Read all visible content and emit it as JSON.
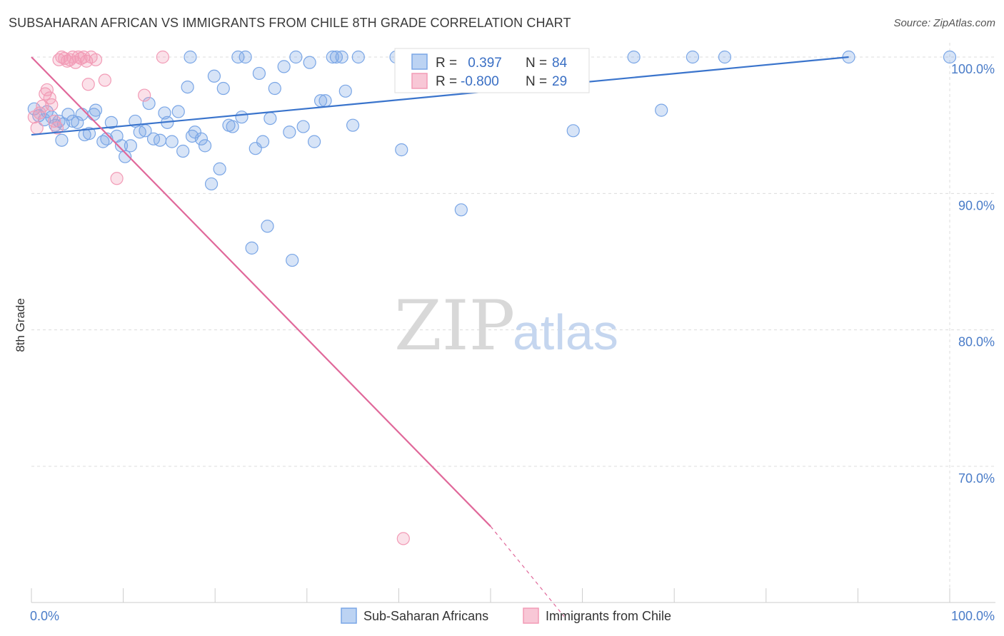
{
  "header": {
    "title": "SUBSAHARAN AFRICAN VS IMMIGRANTS FROM CHILE 8TH GRADE CORRELATION CHART",
    "source": "Source: ZipAtlas.com"
  },
  "watermark": {
    "zip": "ZIP",
    "atlas": "atlas"
  },
  "legend": {
    "rows": [
      {
        "r_label": "R =",
        "r_value": " 0.397",
        "n_label": "N =",
        "n_value": "84",
        "color": "#7aa6e6"
      },
      {
        "r_label": "R =",
        "r_value": "-0.800",
        "n_label": "N =",
        "n_value": "29",
        "color": "#f29bb6"
      }
    ]
  },
  "bottom_legend": [
    {
      "label": "Sub-Saharan Africans",
      "color": "#7aa6e6"
    },
    {
      "label": "Immigrants from Chile",
      "color": "#f29bb6"
    }
  ],
  "chart_data": {
    "type": "scatter",
    "title": "SUBSAHARAN AFRICAN VS IMMIGRANTS FROM CHILE 8TH GRADE CORRELATION CHART",
    "xlabel": "",
    "ylabel": "8th Grade",
    "xlim": [
      0,
      100
    ],
    "ylim": [
      60.0,
      101.5
    ],
    "x_tick_labels": [
      "0.0%",
      "100.0%"
    ],
    "y_ticks": [
      70,
      80,
      90,
      100
    ],
    "y_tick_labels": [
      "70.0%",
      "80.0%",
      "90.0%",
      "100.0%"
    ],
    "grid": true,
    "legend_position": "top-center",
    "series": [
      {
        "name": "Sub-Saharan Africans",
        "color": "#7aa6e6",
        "trend": {
          "x": [
            0,
            89
          ],
          "y": [
            94.3,
            100.0
          ],
          "dashed_to": null
        },
        "points": [
          [
            0.3,
            96.2
          ],
          [
            0.8,
            95.7
          ],
          [
            1.4,
            95.4
          ],
          [
            1.7,
            96.0
          ],
          [
            2.2,
            95.6
          ],
          [
            2.6,
            95.0
          ],
          [
            3.0,
            95.3
          ],
          [
            3.5,
            95.1
          ],
          [
            4.0,
            95.8
          ],
          [
            4.5,
            95.3
          ],
          [
            5.0,
            95.2
          ],
          [
            5.5,
            95.8
          ],
          [
            5.8,
            94.3
          ],
          [
            6.3,
            94.4
          ],
          [
            6.8,
            95.8
          ],
          [
            7.0,
            96.1
          ],
          [
            7.8,
            93.8
          ],
          [
            8.2,
            94.0
          ],
          [
            8.7,
            95.2
          ],
          [
            9.3,
            94.2
          ],
          [
            9.8,
            93.5
          ],
          [
            10.2,
            92.7
          ],
          [
            10.8,
            93.5
          ],
          [
            11.3,
            95.3
          ],
          [
            11.8,
            94.5
          ],
          [
            12.4,
            94.6
          ],
          [
            12.8,
            96.6
          ],
          [
            13.3,
            94.0
          ],
          [
            14.0,
            93.9
          ],
          [
            14.5,
            95.9
          ],
          [
            14.8,
            95.2
          ],
          [
            15.3,
            93.8
          ],
          [
            16.0,
            96.0
          ],
          [
            16.5,
            93.1
          ],
          [
            17.0,
            97.8
          ],
          [
            17.5,
            94.2
          ],
          [
            17.8,
            94.5
          ],
          [
            18.5,
            94.0
          ],
          [
            18.9,
            93.5
          ],
          [
            19.6,
            90.7
          ],
          [
            19.9,
            98.6
          ],
          [
            20.5,
            91.8
          ],
          [
            20.9,
            97.7
          ],
          [
            21.5,
            95.0
          ],
          [
            21.9,
            94.9
          ],
          [
            22.5,
            100.0
          ],
          [
            22.9,
            95.6
          ],
          [
            23.3,
            100.0
          ],
          [
            24.0,
            86.0
          ],
          [
            24.4,
            93.3
          ],
          [
            24.8,
            98.8
          ],
          [
            25.2,
            93.8
          ],
          [
            25.7,
            87.6
          ],
          [
            26.0,
            95.5
          ],
          [
            26.5,
            97.7
          ],
          [
            27.5,
            99.3
          ],
          [
            28.1,
            94.5
          ],
          [
            28.4,
            85.1
          ],
          [
            28.8,
            100.0
          ],
          [
            29.6,
            94.9
          ],
          [
            30.3,
            99.6
          ],
          [
            30.8,
            93.8
          ],
          [
            31.5,
            96.8
          ],
          [
            32.0,
            96.8
          ],
          [
            32.8,
            100.0
          ],
          [
            33.2,
            100.0
          ],
          [
            33.8,
            100.0
          ],
          [
            34.2,
            97.5
          ],
          [
            35.0,
            95.0
          ],
          [
            35.6,
            100.0
          ],
          [
            39.7,
            100.0
          ],
          [
            40.3,
            93.2
          ],
          [
            42.0,
            100.0
          ],
          [
            46.8,
            88.8
          ],
          [
            49.8,
            99.2
          ],
          [
            59.0,
            94.6
          ],
          [
            65.6,
            100.0
          ],
          [
            68.6,
            96.1
          ],
          [
            72.0,
            100.0
          ],
          [
            75.5,
            100.0
          ],
          [
            89.0,
            100.0
          ],
          [
            100.0,
            100.0
          ],
          [
            17.3,
            100.0
          ],
          [
            3.3,
            93.9
          ]
        ]
      },
      {
        "name": "Immigrants from Chile",
        "color": "#f29bb6",
        "trend": {
          "x": [
            0,
            50
          ],
          "y": [
            100.0,
            65.6
          ],
          "dashed_to": [
            58,
            59.0
          ]
        },
        "points": [
          [
            0.3,
            95.6
          ],
          [
            0.6,
            94.8
          ],
          [
            0.9,
            95.9
          ],
          [
            1.2,
            96.4
          ],
          [
            1.5,
            97.3
          ],
          [
            1.7,
            97.6
          ],
          [
            2.0,
            97.0
          ],
          [
            2.2,
            96.5
          ],
          [
            2.5,
            95.3
          ],
          [
            2.8,
            94.8
          ],
          [
            3.0,
            99.8
          ],
          [
            3.3,
            100.0
          ],
          [
            3.6,
            99.9
          ],
          [
            3.9,
            99.7
          ],
          [
            4.2,
            99.8
          ],
          [
            4.5,
            100.0
          ],
          [
            4.8,
            99.6
          ],
          [
            5.1,
            100.0
          ],
          [
            5.4,
            99.9
          ],
          [
            5.7,
            100.0
          ],
          [
            6.0,
            99.7
          ],
          [
            6.2,
            98.0
          ],
          [
            6.5,
            100.0
          ],
          [
            7.0,
            99.8
          ],
          [
            8.0,
            98.3
          ],
          [
            9.3,
            91.1
          ],
          [
            12.3,
            97.2
          ],
          [
            14.3,
            100.0
          ],
          [
            40.5,
            64.7
          ]
        ]
      }
    ]
  }
}
